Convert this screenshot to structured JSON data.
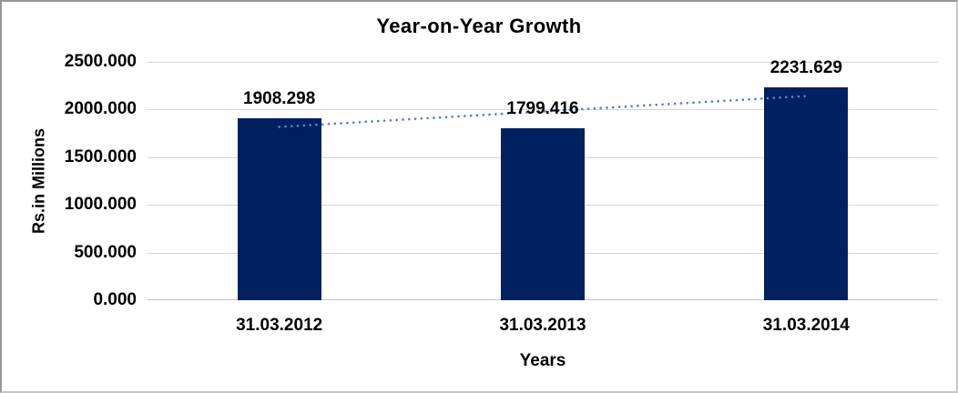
{
  "chart_data": {
    "type": "bar",
    "title": "Year-on-Year Growth",
    "xlabel": "Years",
    "ylabel": "Rs.in Millions",
    "categories": [
      "31.03.2012",
      "31.03.2013",
      "31.03.2014"
    ],
    "values": [
      1908.298,
      1799.416,
      2231.629
    ],
    "data_labels": [
      "1908.298",
      "1799.416",
      "2231.629"
    ],
    "ylim": [
      0,
      2500
    ],
    "ytick_step": 500,
    "ytick_labels": [
      "0.000",
      "500.000",
      "1000.000",
      "1500.000",
      "2000.000",
      "2500.000"
    ],
    "grid": "horizontal",
    "legend": "none",
    "bar_color": "#002060",
    "trendline": {
      "type": "linear",
      "style": "dotted",
      "color": "#4E86C8",
      "endpoint_values": [
        1818.116,
        2141.447
      ]
    },
    "colors": {
      "gridline": "#d6d6d6",
      "axis_line": "#c2c2c2",
      "text": "#000000",
      "background": "#ffffff",
      "border": "#c6c6c6"
    }
  }
}
